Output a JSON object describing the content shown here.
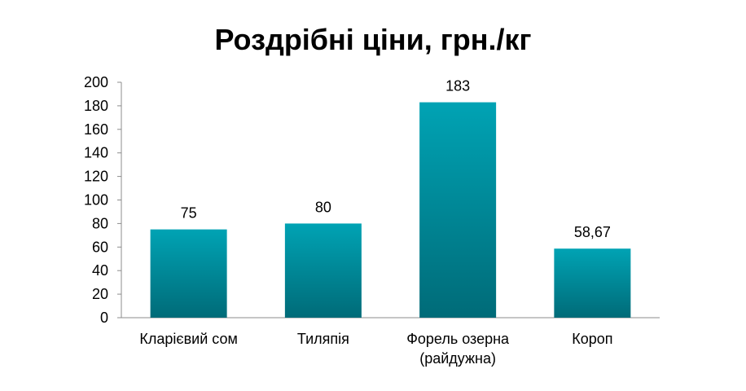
{
  "chart_data": {
    "type": "bar",
    "title": "Роздрібні ціни, грн./кг",
    "xlabel": "",
    "ylabel": "",
    "categories": [
      [
        "Кларієвий сом"
      ],
      [
        "Тиляпія"
      ],
      [
        "Форель озерна",
        "(райдужна)"
      ],
      [
        "Короп"
      ]
    ],
    "values": [
      75,
      80,
      183,
      58.67
    ],
    "data_labels": [
      "75",
      "80",
      "183",
      "58,67"
    ],
    "ylim": [
      0,
      200
    ],
    "yticks": [
      0,
      20,
      40,
      60,
      80,
      100,
      120,
      140,
      160,
      180,
      200
    ],
    "grid": false,
    "legend": "none",
    "colors": {
      "bar_top": "#00a3b4",
      "bar_bottom": "#006b78",
      "axis": "#8c8c8c"
    }
  }
}
